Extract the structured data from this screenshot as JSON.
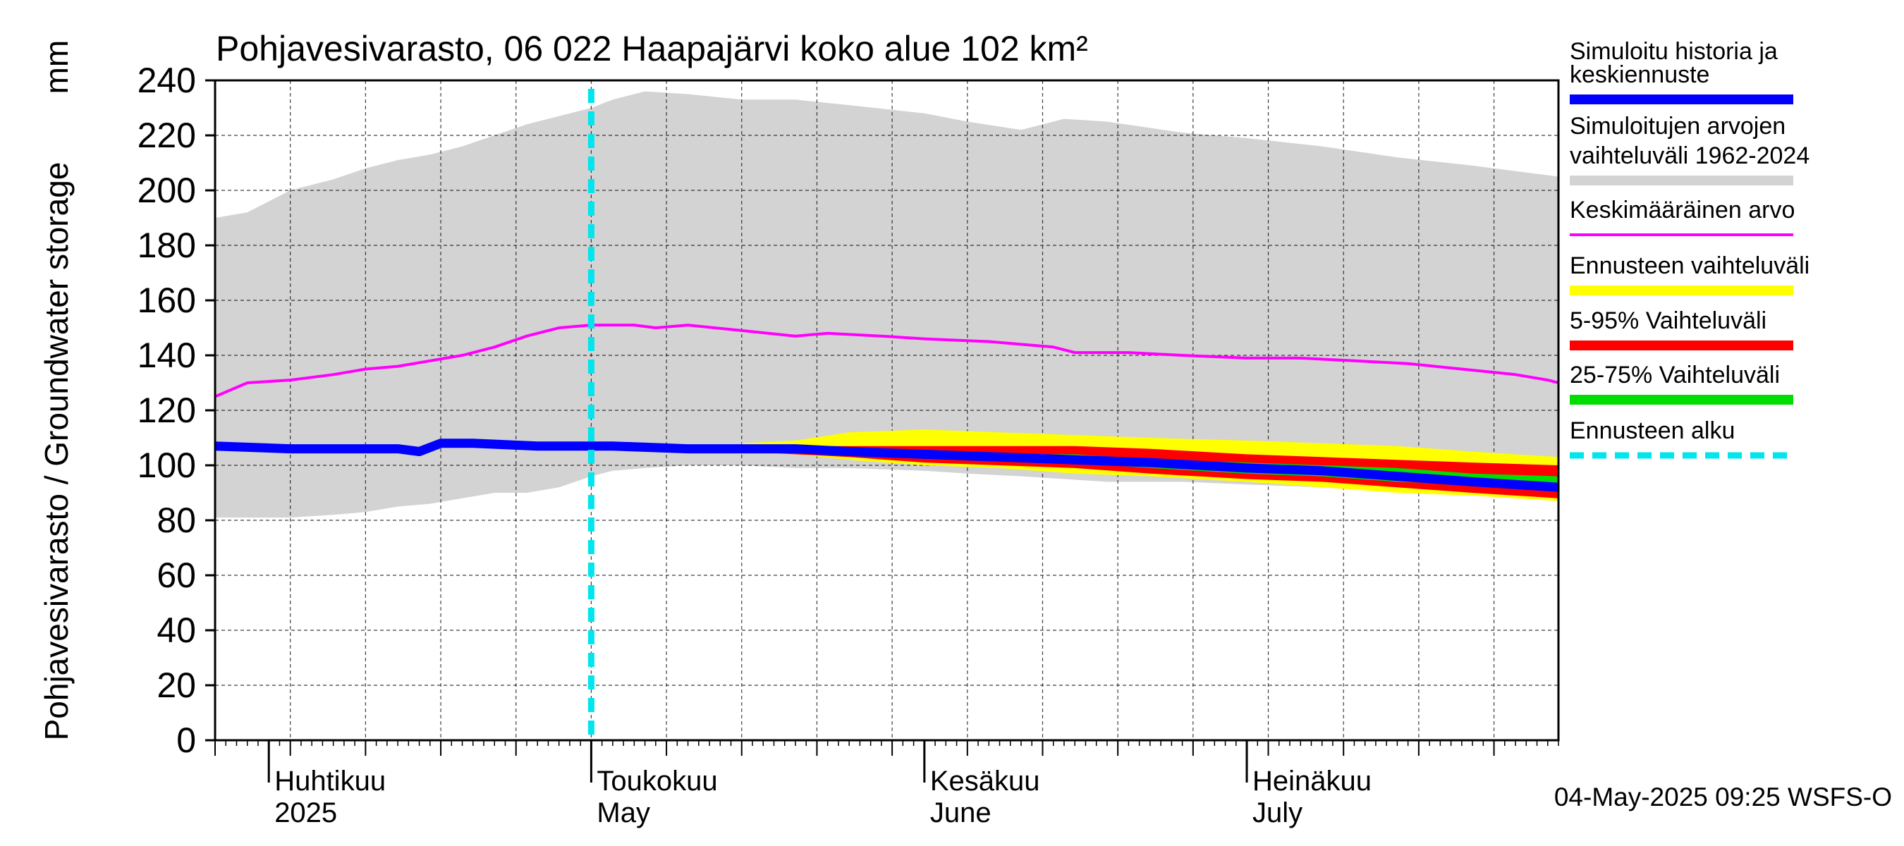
{
  "chart_data": {
    "type": "area",
    "title": "Pohjavesivarasto, 06 022 Haapajärvi koko alue 102 km²",
    "ylabel": "Pohjavesivarasto / Groundwater storage",
    "yunit": "mm",
    "ylim": [
      0,
      240
    ],
    "yticks": [
      0,
      20,
      40,
      60,
      80,
      100,
      120,
      140,
      160,
      180,
      200,
      220,
      240
    ],
    "xlim": [
      "2025-03-27",
      "2025-07-30"
    ],
    "grid": true,
    "legend_position": "right",
    "months": [
      {
        "date": "2025-04-01",
        "label1": "Huhtikuu",
        "label2": "2025"
      },
      {
        "date": "2025-05-01",
        "label1": "Toukokuu",
        "label2": "May"
      },
      {
        "date": "2025-06-01",
        "label1": "Kesäkuu",
        "label2": "June"
      },
      {
        "date": "2025-07-01",
        "label1": "Heinäkuu",
        "label2": "July"
      }
    ],
    "forecast_start": "2025-05-01",
    "timestamp": "04-May-2025 09:25 WSFS-O",
    "legend": [
      {
        "key": "history",
        "line1": "Simuloitu historia ja",
        "line2": "keskiennuste",
        "color": "#0000ff"
      },
      {
        "key": "range",
        "line1": "Simuloitujen arvojen",
        "line2": "vaihteluväli 1962-2024",
        "color": "#d3d3d3"
      },
      {
        "key": "mean",
        "line1": "Keskimääräinen arvo",
        "line2": "",
        "color": "#ff00ff"
      },
      {
        "key": "fc_range",
        "line1": "Ennusteen vaihteluväli",
        "line2": "",
        "color": "#ffff00"
      },
      {
        "key": "p5_95",
        "line1": "5-95% Vaihteluväli",
        "line2": "",
        "color": "#ff0000"
      },
      {
        "key": "p25_75",
        "line1": "25-75% Vaihteluväli",
        "line2": "",
        "color": "#00dd00"
      },
      {
        "key": "start",
        "line1": "Ennusteen alku",
        "line2": "",
        "color": "#00e5ee"
      }
    ],
    "series": {
      "range_band": {
        "x": [
          "2025-03-27",
          "2025-03-30",
          "2025-04-03",
          "2025-04-07",
          "2025-04-10",
          "2025-04-13",
          "2025-04-16",
          "2025-04-19",
          "2025-04-22",
          "2025-04-25",
          "2025-04-28",
          "2025-05-01",
          "2025-05-03",
          "2025-05-06",
          "2025-05-10",
          "2025-05-15",
          "2025-05-20",
          "2025-05-25",
          "2025-06-01",
          "2025-06-05",
          "2025-06-10",
          "2025-06-14",
          "2025-06-18",
          "2025-06-25",
          "2025-07-01",
          "2025-07-08",
          "2025-07-15",
          "2025-07-22",
          "2025-07-30"
        ],
        "high": [
          190,
          192,
          200,
          204,
          208,
          211,
          213,
          216,
          220,
          224,
          227,
          230,
          233,
          236,
          235,
          233,
          233,
          231,
          228,
          225,
          222,
          226,
          225,
          221,
          219,
          216,
          212,
          209,
          205
        ],
        "low": [
          81,
          81,
          81,
          82,
          83,
          85,
          86,
          88,
          90,
          90,
          92,
          96,
          98,
          99,
          100,
          100,
          99,
          99,
          98,
          97,
          96,
          95,
          94,
          94,
          93,
          92,
          91,
          90,
          88
        ]
      },
      "mean": {
        "x": [
          "2025-03-27",
          "2025-03-30",
          "2025-04-03",
          "2025-04-07",
          "2025-04-10",
          "2025-04-13",
          "2025-04-16",
          "2025-04-19",
          "2025-04-22",
          "2025-04-25",
          "2025-04-28",
          "2025-05-01",
          "2025-05-03",
          "2025-05-05",
          "2025-05-07",
          "2025-05-10",
          "2025-05-15",
          "2025-05-20",
          "2025-05-23",
          "2025-05-28",
          "2025-06-01",
          "2025-06-07",
          "2025-06-13",
          "2025-06-15",
          "2025-06-20",
          "2025-06-25",
          "2025-07-01",
          "2025-07-06",
          "2025-07-11",
          "2025-07-16",
          "2025-07-21",
          "2025-07-26",
          "2025-07-29",
          "2025-07-30"
        ],
        "values": [
          125,
          130,
          131,
          133,
          135,
          136,
          138,
          140,
          143,
          147,
          150,
          151,
          151,
          151,
          150,
          151,
          149,
          147,
          148,
          147,
          146,
          145,
          143,
          141,
          141,
          140,
          139,
          139,
          138,
          137,
          135,
          133,
          131,
          130
        ]
      },
      "history": {
        "x": [
          "2025-03-27",
          "2025-04-03",
          "2025-04-08",
          "2025-04-13",
          "2025-04-15",
          "2025-04-17",
          "2025-04-20",
          "2025-04-26",
          "2025-04-30",
          "2025-05-03",
          "2025-05-10",
          "2025-05-15"
        ],
        "values": [
          107,
          106,
          106,
          106,
          105,
          108,
          108,
          107,
          107,
          107,
          106,
          106
        ]
      },
      "forecast_median": {
        "x": [
          "2025-05-15",
          "2025-05-20",
          "2025-05-25",
          "2025-06-01",
          "2025-06-08",
          "2025-06-15",
          "2025-06-22",
          "2025-07-01",
          "2025-07-08",
          "2025-07-15",
          "2025-07-22",
          "2025-07-30"
        ],
        "values": [
          106,
          106,
          105,
          104,
          103,
          102,
          101,
          99,
          98,
          96,
          94,
          92
        ]
      },
      "fc_range": {
        "x": [
          "2025-05-15",
          "2025-05-20",
          "2025-05-25",
          "2025-06-01",
          "2025-06-08",
          "2025-06-15",
          "2025-06-22",
          "2025-07-01",
          "2025-07-08",
          "2025-07-15",
          "2025-07-22",
          "2025-07-30"
        ],
        "high": [
          108,
          109,
          112,
          113,
          112,
          111,
          110,
          109,
          108,
          107,
          105,
          103
        ],
        "low": [
          105,
          104,
          102,
          100,
          99,
          97,
          96,
          94,
          92,
          90,
          89,
          87
        ]
      },
      "p5_95": {
        "x": [
          "2025-05-15",
          "2025-05-20",
          "2025-05-25",
          "2025-06-01",
          "2025-06-08",
          "2025-06-15",
          "2025-06-22",
          "2025-07-01",
          "2025-07-08",
          "2025-07-15",
          "2025-07-22",
          "2025-07-30"
        ],
        "high": [
          107,
          107,
          107,
          107,
          107,
          107,
          106,
          104,
          103,
          102,
          101,
          100
        ],
        "low": [
          105,
          104,
          103,
          101,
          100,
          99,
          97,
          95,
          94,
          92,
          90,
          88
        ]
      },
      "p25_75": {
        "x": [
          "2025-05-15",
          "2025-05-20",
          "2025-05-25",
          "2025-06-01",
          "2025-06-08",
          "2025-06-15",
          "2025-06-22",
          "2025-07-01",
          "2025-07-08",
          "2025-07-15",
          "2025-07-22",
          "2025-07-30"
        ],
        "high": [
          107,
          106,
          106,
          105,
          104,
          104,
          102,
          101,
          100,
          99,
          97,
          96
        ],
        "low": [
          106,
          105,
          104,
          103,
          102,
          101,
          99,
          97,
          96,
          94,
          93,
          91
        ]
      }
    }
  }
}
